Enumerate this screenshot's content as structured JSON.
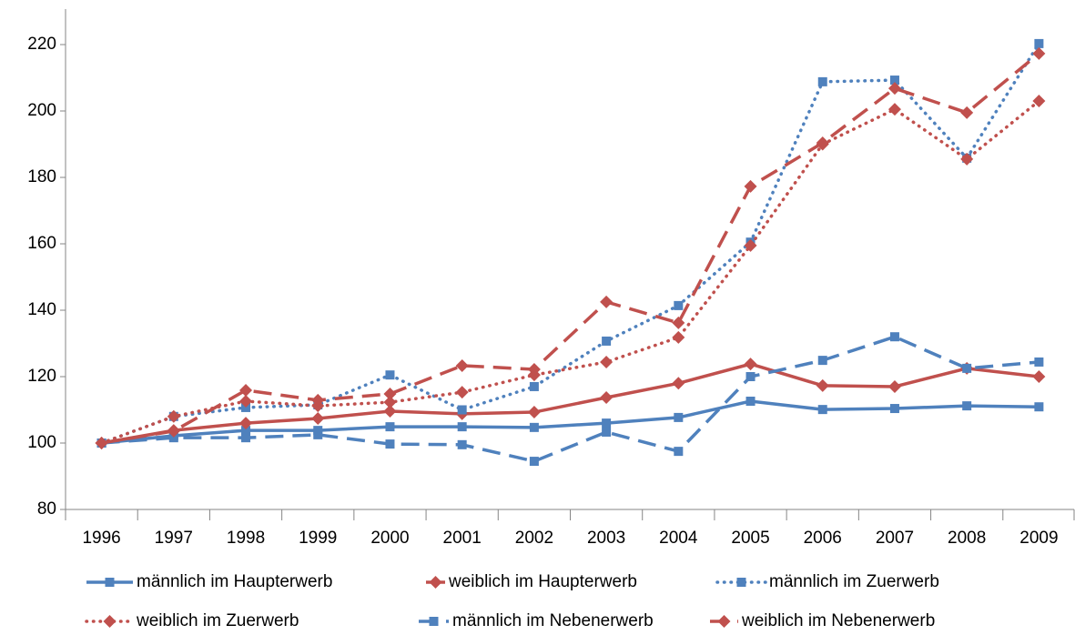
{
  "chart_data": {
    "type": "line",
    "categories": [
      "1996",
      "1997",
      "1998",
      "1999",
      "2000",
      "2001",
      "2002",
      "2003",
      "2004",
      "2005",
      "2006",
      "2007",
      "2008",
      "2009"
    ],
    "ylim": [
      80,
      220
    ],
    "yticks": [
      80,
      100,
      120,
      140,
      160,
      180,
      200,
      220
    ],
    "grid": false,
    "legend": "bottom",
    "series": [
      {
        "name": "männlich im Haupterwerb",
        "color": "#4f81bd",
        "dash": "solid",
        "marker": "square",
        "values": [
          100,
          102.2,
          103.8,
          103.8,
          104.9,
          104.9,
          104.7,
          106,
          107.7,
          112.6,
          110.1,
          110.4,
          111.2,
          110.9
        ]
      },
      {
        "name": "weiblich im Haupterwerb",
        "color": "#c0504d",
        "dash": "solid",
        "marker": "diamond",
        "values": [
          100,
          103.8,
          106,
          107.4,
          109.6,
          108.8,
          109.3,
          113.7,
          118,
          123.8,
          117.3,
          117,
          122.5,
          120
        ]
      },
      {
        "name": "männlich im Zuerwerb",
        "color": "#4f81bd",
        "dash": "dotted",
        "marker": "square",
        "values": [
          100,
          108,
          110.7,
          111.5,
          120.5,
          110,
          117,
          130.7,
          141.4,
          160.5,
          208.8,
          209.3,
          185.8,
          220.3
        ]
      },
      {
        "name": "weiblich im Zuerwerb",
        "color": "#c0504d",
        "dash": "dotted",
        "marker": "diamond",
        "values": [
          100,
          108,
          112.6,
          111.2,
          112.3,
          115.3,
          120.5,
          124.4,
          131.8,
          159.5,
          190,
          200.5,
          185.5,
          203
        ]
      },
      {
        "name": "männlich im Nebenerwerb",
        "color": "#4f81bd",
        "dash": "dashed",
        "marker": "square",
        "values": [
          100,
          101.6,
          101.6,
          102.5,
          99.7,
          99.5,
          94.5,
          103.3,
          97.5,
          120,
          124.9,
          132,
          122.5,
          124.4
        ]
      },
      {
        "name": "weiblich im Nebenerwerb",
        "color": "#c0504d",
        "dash": "dashed",
        "marker": "diamond",
        "values": [
          100,
          103.6,
          115.9,
          112.9,
          114.8,
          123.3,
          122.2,
          142.5,
          136.2,
          177.3,
          190.4,
          206.8,
          199.5,
          217.3
        ]
      }
    ]
  }
}
